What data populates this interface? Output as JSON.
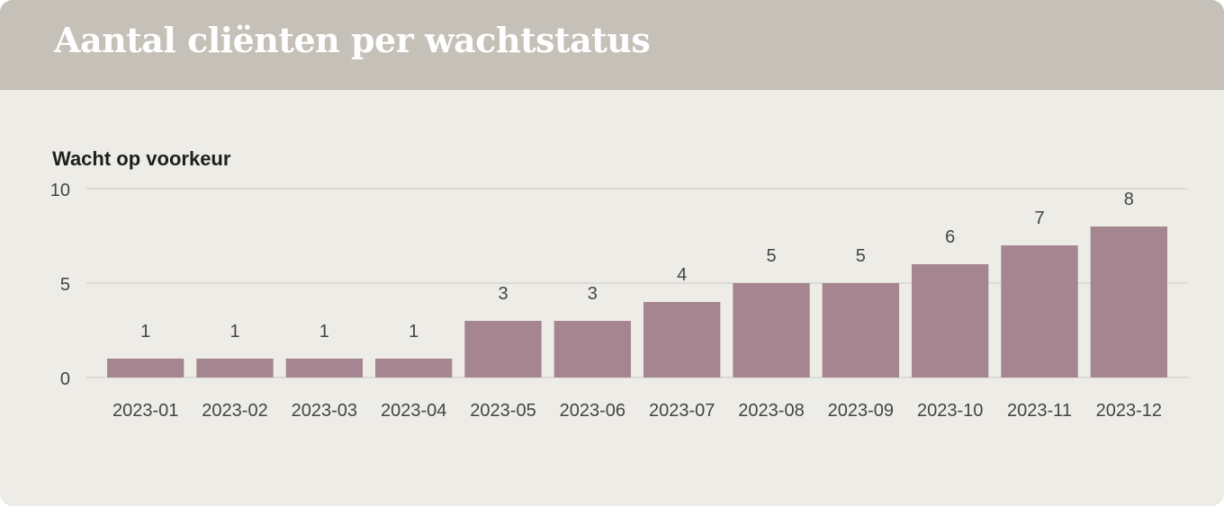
{
  "header": {
    "title": "Aantal cliënten per wachtstatus"
  },
  "colors": {
    "header_bg": "#c5c1b9",
    "card_bg": "#eeece7",
    "bar": "#a5858f",
    "gridline": "#d6d4cf",
    "text": "#444444"
  },
  "chart_data": {
    "type": "bar",
    "title": "Wacht op voorkeur",
    "categories": [
      "2023-01",
      "2023-02",
      "2023-03",
      "2023-04",
      "2023-05",
      "2023-06",
      "2023-07",
      "2023-08",
      "2023-09",
      "2023-10",
      "2023-11",
      "2023-12"
    ],
    "values": [
      1,
      1,
      1,
      1,
      3,
      3,
      4,
      5,
      5,
      6,
      7,
      8
    ],
    "yticks": [
      0,
      5,
      10
    ],
    "ylim": [
      0,
      10
    ],
    "grid": true,
    "data_labels": true
  }
}
